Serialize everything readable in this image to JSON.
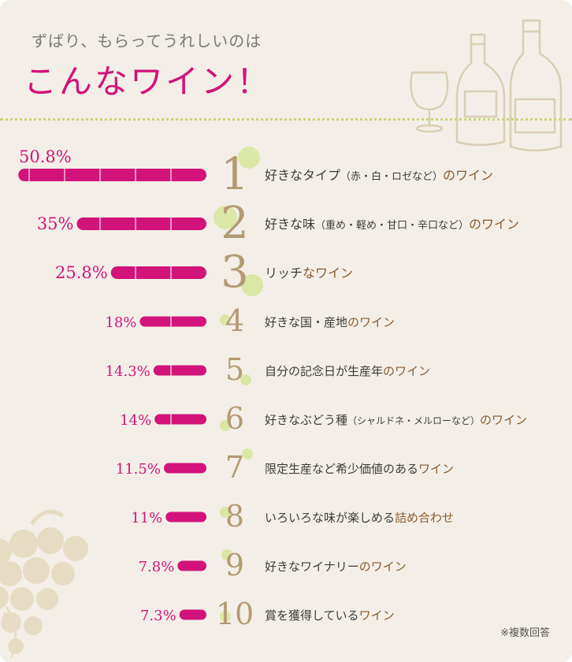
{
  "header": {
    "subtitle": "ずばり、もらってうれしいのは",
    "title": "こんなワイン！"
  },
  "colors": {
    "accent": "#d2137a",
    "rank_number": "#b39a72",
    "label_dark": "#3c3c3c",
    "label_brown": "#8a5a2a",
    "circle_green": "#d6e59a",
    "background": "#f3efe8"
  },
  "chart_data": {
    "type": "bar",
    "orientation": "horizontal",
    "direction": "right-to-left",
    "ranks": [
      "1",
      "2",
      "3",
      "4",
      "5",
      "6",
      "7",
      "8",
      "9",
      "10"
    ],
    "value_labels": [
      "50.8%",
      "35%",
      "25.8%",
      "18%",
      "14.3%",
      "14%",
      "11.5%",
      "11%",
      "7.8%",
      "7.3%"
    ],
    "values": [
      50.8,
      35,
      25.8,
      18,
      14.3,
      14,
      11.5,
      11,
      7.8,
      7.3
    ],
    "categories": [
      [
        {
          "t": "好きなタイプ",
          "c": "dark"
        },
        {
          "t": "（赤・白・ロゼなど）",
          "c": "dark",
          "small": true
        },
        {
          "t": "のワイン",
          "c": "brown"
        }
      ],
      [
        {
          "t": "好きな味",
          "c": "dark"
        },
        {
          "t": "（重め・軽め・甘口・辛口など）",
          "c": "dark",
          "small": true
        },
        {
          "t": "のワイン",
          "c": "brown"
        }
      ],
      [
        {
          "t": "リッチ",
          "c": "dark"
        },
        {
          "t": "なワイン",
          "c": "brown"
        }
      ],
      [
        {
          "t": "好きな国・産地",
          "c": "dark"
        },
        {
          "t": "のワイン",
          "c": "brown"
        }
      ],
      [
        {
          "t": "自分の記念日が生産年",
          "c": "dark"
        },
        {
          "t": "のワイン",
          "c": "brown"
        }
      ],
      [
        {
          "t": "好きなぶどう種",
          "c": "dark"
        },
        {
          "t": "（シャルドネ・メルローなど）",
          "c": "dark",
          "small": true
        },
        {
          "t": "のワイン",
          "c": "brown"
        }
      ],
      [
        {
          "t": "限定生産など希少価値のある",
          "c": "dark"
        },
        {
          "t": "ワイン",
          "c": "brown"
        }
      ],
      [
        {
          "t": "いろいろな味が楽しめる",
          "c": "dark"
        },
        {
          "t": "詰め合わせ",
          "c": "brown"
        }
      ],
      [
        {
          "t": "好きなワイナリー",
          "c": "dark"
        },
        {
          "t": "のワイン",
          "c": "brown"
        }
      ],
      [
        {
          "t": "賞を獲得している",
          "c": "dark"
        },
        {
          "t": "ワイン",
          "c": "brown"
        }
      ]
    ],
    "legend": "none",
    "grid": false
  },
  "footnote": "※複数回答"
}
